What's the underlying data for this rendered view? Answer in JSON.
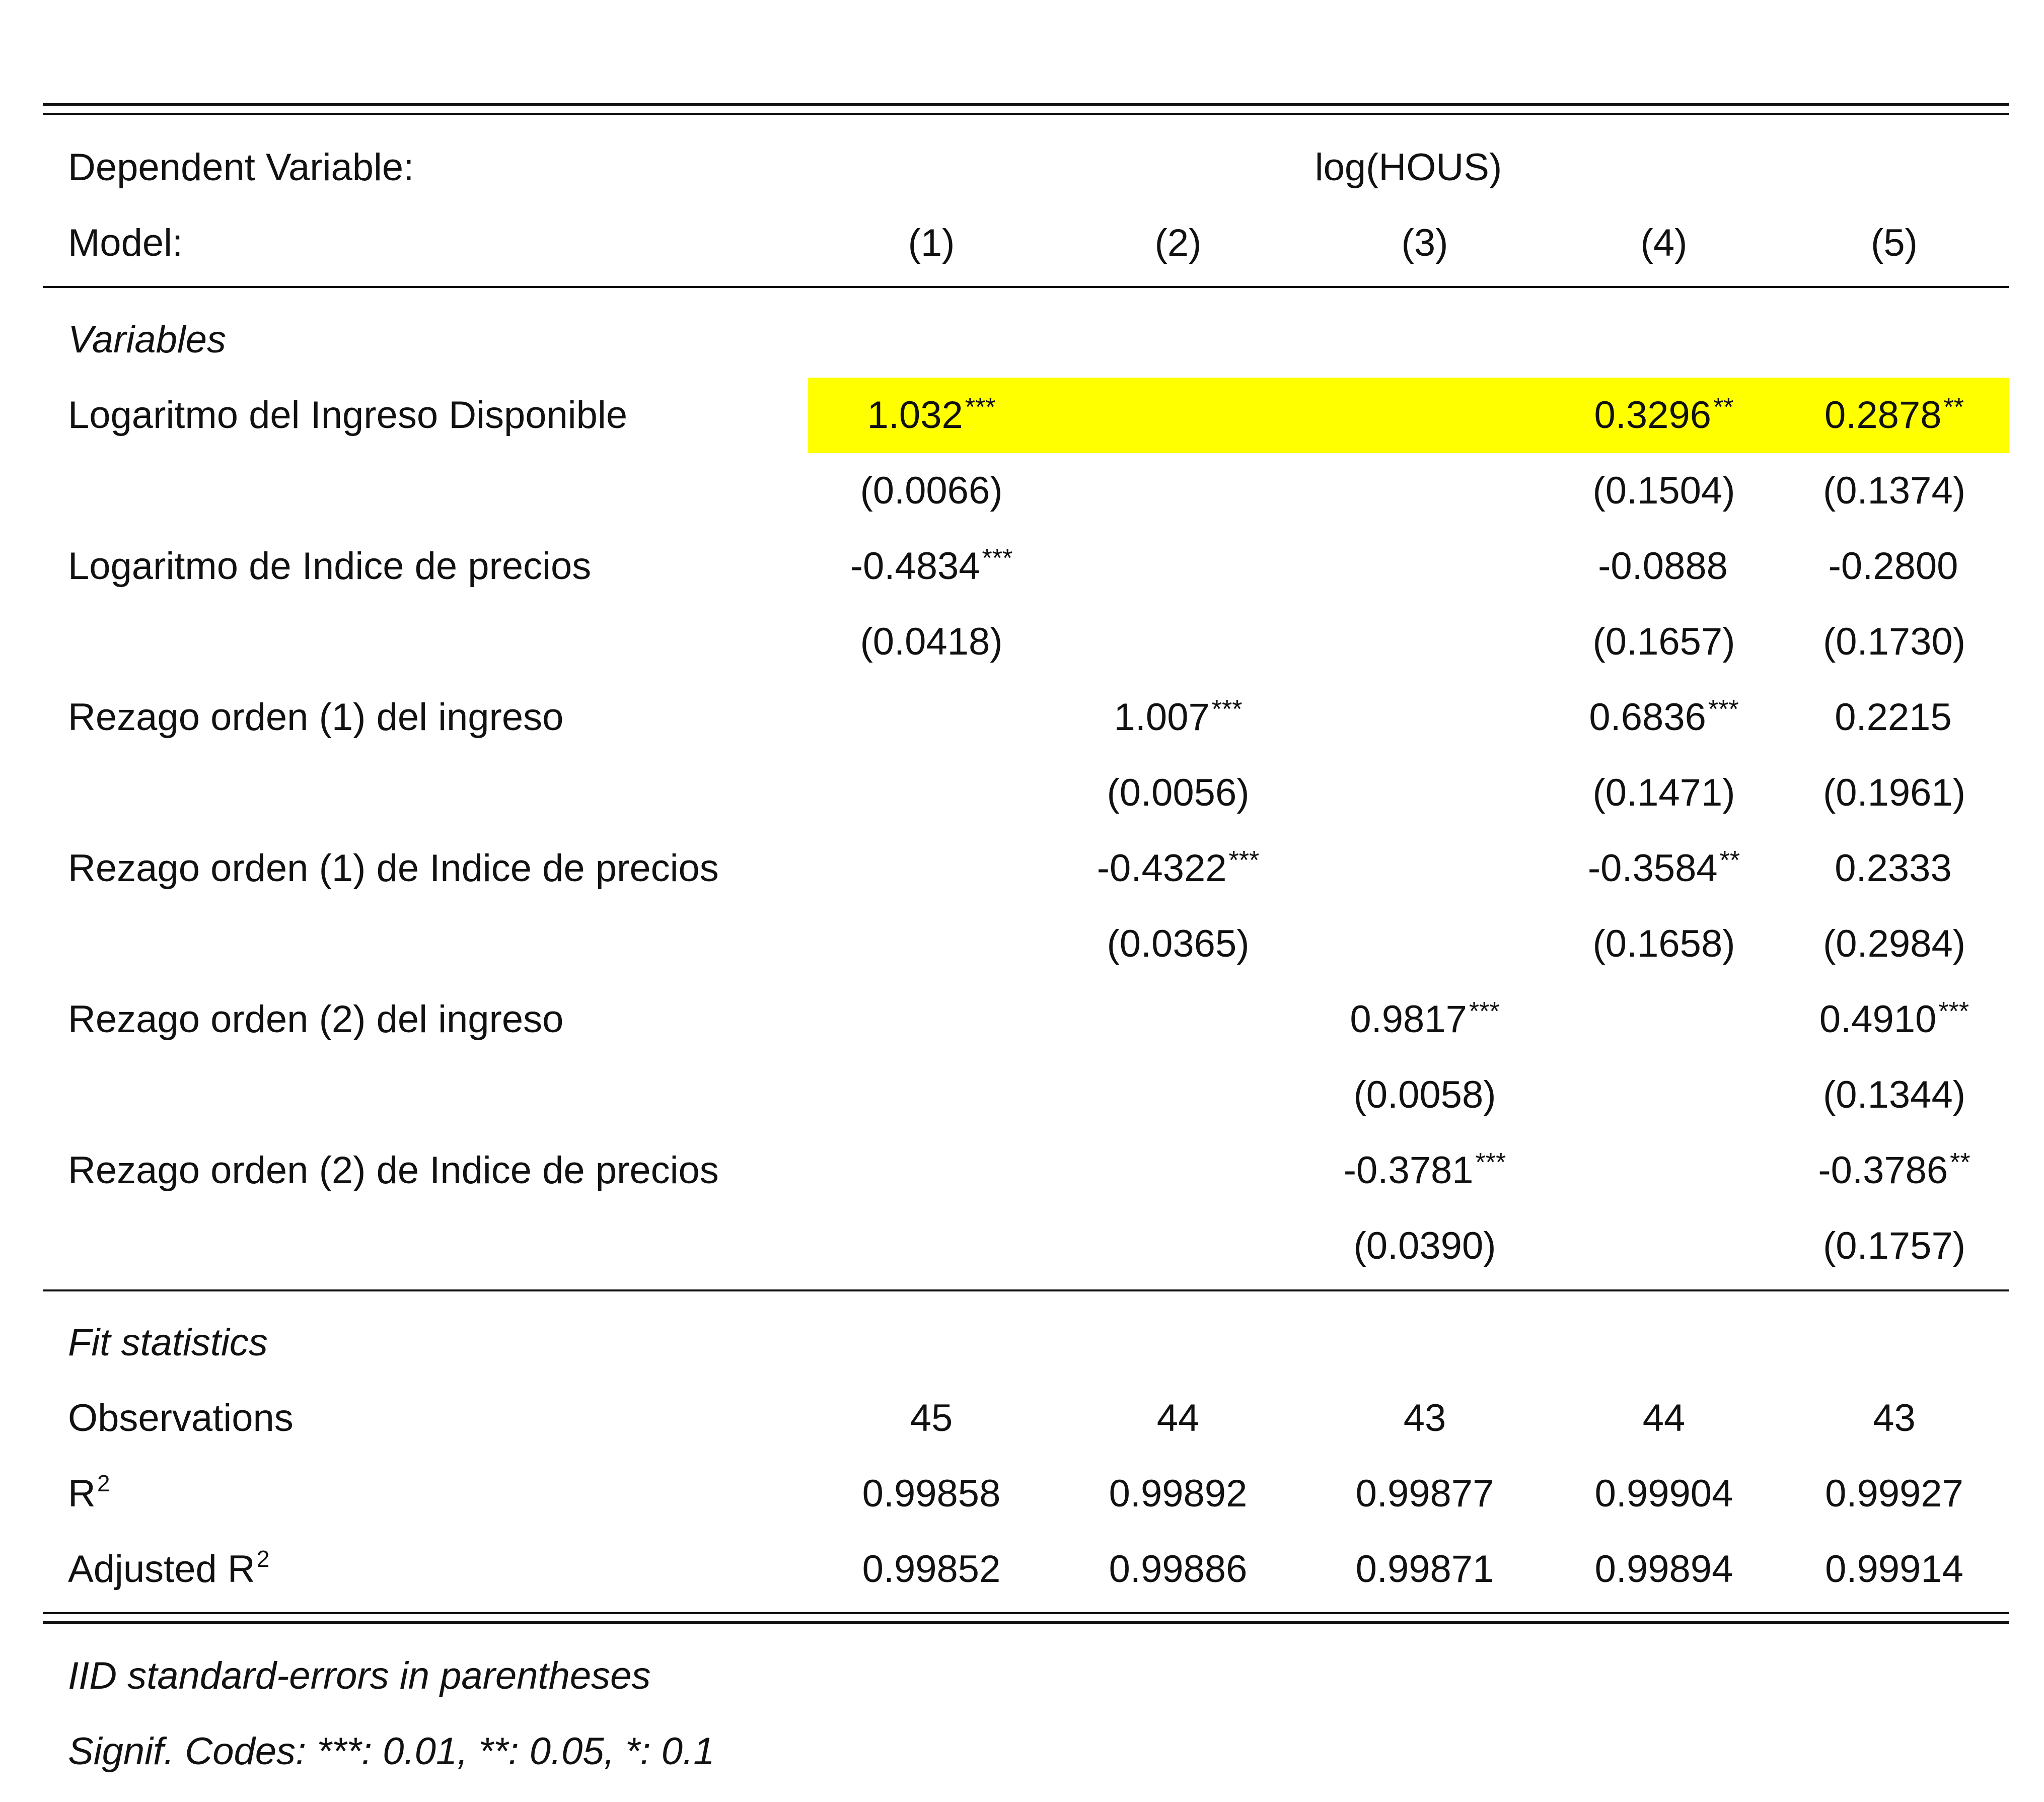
{
  "header": {
    "dependent_label": "Dependent Variable:",
    "dependent_value": "log(HOUS)",
    "model_label": "Model:",
    "models": [
      "(1)",
      "(2)",
      "(3)",
      "(4)",
      "(5)"
    ]
  },
  "sections": {
    "variables": "Variables",
    "fit": "Fit statistics"
  },
  "variables": [
    {
      "label": "Logaritmo del Ingreso Disponible",
      "coef": [
        "1.032",
        "",
        "",
        "0.3296",
        "0.2878"
      ],
      "sig": [
        "***",
        "",
        "",
        "**",
        "**"
      ],
      "se": [
        "(0.0066)",
        "",
        "",
        "(0.1504)",
        "(0.1374)"
      ],
      "highlight_color": "#ffff00"
    },
    {
      "label": "Logaritmo de Indice de precios",
      "coef": [
        "-0.4834",
        "",
        "",
        "-0.0888",
        "-0.2800"
      ],
      "sig": [
        "***",
        "",
        "",
        "",
        ""
      ],
      "se": [
        "(0.0418)",
        "",
        "",
        "(0.1657)",
        "(0.1730)"
      ]
    },
    {
      "label": "Rezago orden (1) del ingreso",
      "coef": [
        "",
        "1.007",
        "",
        "0.6836",
        "0.2215"
      ],
      "sig": [
        "",
        "***",
        "",
        "***",
        ""
      ],
      "se": [
        "",
        "(0.0056)",
        "",
        "(0.1471)",
        "(0.1961)"
      ]
    },
    {
      "label": "Rezago orden (1) de Indice de precios",
      "coef": [
        "",
        "-0.4322",
        "",
        "-0.3584",
        "0.2333"
      ],
      "sig": [
        "",
        "***",
        "",
        "**",
        ""
      ],
      "se": [
        "",
        "(0.0365)",
        "",
        "(0.1658)",
        "(0.2984)"
      ]
    },
    {
      "label": "Rezago orden (2) del ingreso",
      "coef": [
        "",
        "",
        "0.9817",
        "",
        "0.4910"
      ],
      "sig": [
        "",
        "",
        "***",
        "",
        "***"
      ],
      "se": [
        "",
        "",
        "(0.0058)",
        "",
        "(0.1344)"
      ]
    },
    {
      "label": "Rezago orden (2) de Indice de precios",
      "coef": [
        "",
        "",
        "-0.3781",
        "",
        "-0.3786"
      ],
      "sig": [
        "",
        "",
        "***",
        "",
        "**"
      ],
      "se": [
        "",
        "",
        "(0.0390)",
        "",
        "(0.1757)"
      ]
    }
  ],
  "fit": [
    {
      "label": "Observations",
      "sup": "",
      "values": [
        "45",
        "44",
        "43",
        "44",
        "43"
      ]
    },
    {
      "label": "R",
      "sup": "2",
      "values": [
        "0.99858",
        "0.99892",
        "0.99877",
        "0.99904",
        "0.99927"
      ]
    },
    {
      "label": "Adjusted R",
      "sup": "2",
      "values": [
        "0.99852",
        "0.99886",
        "0.99871",
        "0.99894",
        "0.99914"
      ]
    }
  ],
  "notes": {
    "se_note": "IID standard-errors in parentheses",
    "signif": "Signif. Codes: ***: 0.01, **: 0.05, *: 0.1"
  }
}
